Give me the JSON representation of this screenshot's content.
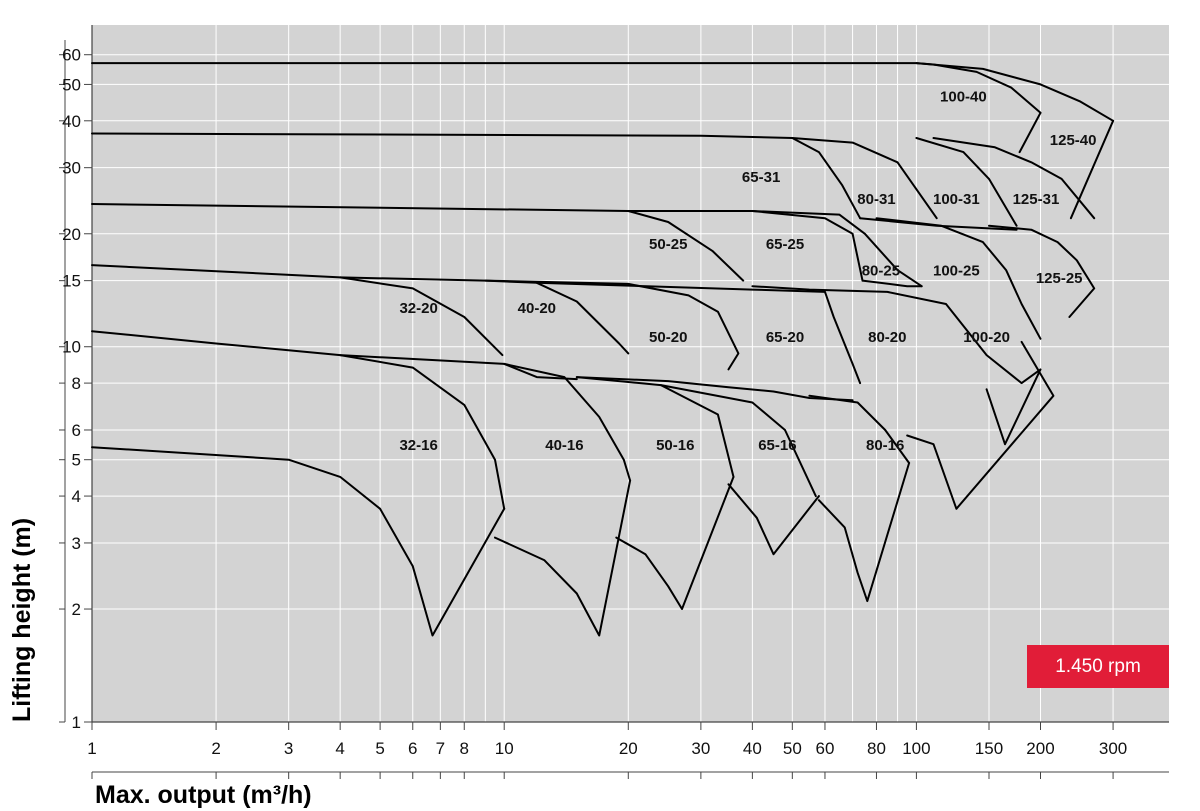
{
  "chart_data": {
    "type": "line",
    "xlabel": "Max. output (m³/h)",
    "ylabel": "Lifting height (m)",
    "x_scale": "log",
    "y_scale": "log",
    "xlim": [
      1,
      410
    ],
    "ylim": [
      1,
      72
    ],
    "x_ticks": [
      "1",
      "2",
      "3",
      "4",
      "5",
      "6",
      "7",
      "8",
      "10",
      "20",
      "30",
      "40",
      "50",
      "60",
      "80",
      "100",
      "150",
      "200",
      "300"
    ],
    "y_ticks": [
      "1",
      "2",
      "3",
      "4",
      "5",
      "6",
      "8",
      "10",
      "15",
      "20",
      "30",
      "40",
      "50",
      "60"
    ],
    "grid": true,
    "background": "#d3d3d3",
    "line_color": "#000000",
    "badge": "1.450 rpm",
    "badge_color": "#e11d38",
    "region_labels": [
      {
        "text": "100-40",
        "x": 130,
        "y": 45
      },
      {
        "text": "125-40",
        "x": 240,
        "y": 34.5
      },
      {
        "text": "65-31",
        "x": 42,
        "y": 27.5
      },
      {
        "text": "80-31",
        "x": 80,
        "y": 24
      },
      {
        "text": "100-31",
        "x": 125,
        "y": 24
      },
      {
        "text": "125-31",
        "x": 195,
        "y": 24
      },
      {
        "text": "50-25",
        "x": 25,
        "y": 18.2
      },
      {
        "text": "65-25",
        "x": 48,
        "y": 18.2
      },
      {
        "text": "80-25",
        "x": 82,
        "y": 15.5
      },
      {
        "text": "100-25",
        "x": 125,
        "y": 15.5
      },
      {
        "text": "125-25",
        "x": 222,
        "y": 14.8
      },
      {
        "text": "32-20",
        "x": 6.2,
        "y": 12.3
      },
      {
        "text": "40-20",
        "x": 12,
        "y": 12.3
      },
      {
        "text": "50-20",
        "x": 25,
        "y": 10.3
      },
      {
        "text": "65-20",
        "x": 48,
        "y": 10.3
      },
      {
        "text": "80-20",
        "x": 85,
        "y": 10.3
      },
      {
        "text": "100-20",
        "x": 148,
        "y": 10.3
      },
      {
        "text": "32-16",
        "x": 6.2,
        "y": 5.3
      },
      {
        "text": "40-16",
        "x": 14,
        "y": 5.3
      },
      {
        "text": "50-16",
        "x": 26,
        "y": 5.3
      },
      {
        "text": "65-16",
        "x": 46,
        "y": 5.3
      },
      {
        "text": "80-16",
        "x": 84,
        "y": 5.3
      }
    ],
    "series": [
      {
        "values": [
          [
            1,
            57
          ],
          [
            100,
            57
          ],
          [
            110,
            56.5
          ],
          [
            140,
            54
          ],
          [
            170,
            49
          ],
          [
            200,
            42
          ]
        ]
      },
      {
        "values": [
          [
            100,
            57
          ],
          [
            145,
            55
          ],
          [
            200,
            50
          ],
          [
            250,
            45
          ],
          [
            300,
            40
          ]
        ]
      },
      {
        "values": [
          [
            200,
            42
          ],
          [
            178,
            33
          ]
        ]
      },
      {
        "values": [
          [
            300,
            40
          ],
          [
            237,
            22
          ]
        ]
      },
      {
        "values": [
          [
            1,
            37
          ],
          [
            30,
            36.5
          ],
          [
            50,
            36
          ],
          [
            58,
            33
          ],
          [
            66,
            27
          ],
          [
            73,
            22
          ]
        ]
      },
      {
        "values": [
          [
            50,
            36
          ],
          [
            70,
            35
          ],
          [
            90,
            31
          ],
          [
            112,
            22
          ]
        ]
      },
      {
        "values": [
          [
            100,
            36
          ],
          [
            130,
            33
          ],
          [
            150,
            28
          ],
          [
            175,
            21
          ]
        ]
      },
      {
        "values": [
          [
            110,
            36
          ],
          [
            155,
            34
          ],
          [
            190,
            31
          ],
          [
            225,
            28
          ],
          [
            270,
            22
          ]
        ]
      },
      {
        "values": [
          [
            73,
            22
          ],
          [
            112,
            21
          ],
          [
            175,
            20.5
          ]
        ]
      },
      {
        "values": [
          [
            1,
            24
          ],
          [
            20,
            23
          ],
          [
            25,
            21.5
          ],
          [
            32,
            18
          ],
          [
            38,
            15
          ]
        ]
      },
      {
        "values": [
          [
            20,
            23
          ],
          [
            40,
            23
          ],
          [
            60,
            22
          ],
          [
            70,
            20
          ],
          [
            74,
            15
          ]
        ]
      },
      {
        "values": [
          [
            40,
            23
          ],
          [
            65,
            22.5
          ],
          [
            75,
            20
          ],
          [
            90,
            16
          ],
          [
            103,
            14.5
          ]
        ]
      },
      {
        "values": [
          [
            80,
            22
          ],
          [
            115,
            21
          ],
          [
            145,
            19
          ],
          [
            165,
            16
          ],
          [
            180,
            13
          ],
          [
            200,
            10.5
          ]
        ]
      },
      {
        "values": [
          [
            150,
            21
          ],
          [
            190,
            20.5
          ],
          [
            220,
            19
          ],
          [
            245,
            17
          ],
          [
            270,
            14.3
          ],
          [
            235,
            12
          ]
        ]
      },
      {
        "values": [
          [
            74,
            15
          ],
          [
            95,
            14.5
          ],
          [
            103,
            14.5
          ]
        ]
      },
      {
        "values": [
          [
            1,
            16.5
          ],
          [
            4,
            15.3
          ],
          [
            6,
            14.3
          ],
          [
            8,
            12
          ],
          [
            9.9,
            9.5
          ]
        ]
      },
      {
        "values": [
          [
            4,
            15.3
          ],
          [
            9,
            15
          ],
          [
            12,
            14.8
          ],
          [
            15,
            13.2
          ],
          [
            19,
            10.2
          ],
          [
            20,
            9.6
          ]
        ]
      },
      {
        "values": [
          [
            9,
            15
          ],
          [
            20,
            14.7
          ],
          [
            28,
            13.7
          ],
          [
            33,
            12.4
          ],
          [
            37,
            9.6
          ],
          [
            35,
            8.7
          ]
        ]
      },
      {
        "values": [
          [
            12,
            14.8
          ],
          [
            40,
            14.2
          ],
          [
            60,
            14
          ],
          [
            63,
            12
          ],
          [
            70,
            9
          ],
          [
            73,
            8
          ]
        ]
      },
      {
        "values": [
          [
            40,
            14.5
          ],
          [
            55,
            14.2
          ],
          [
            85,
            14
          ],
          [
            118,
            13
          ],
          [
            148,
            9.5
          ],
          [
            180,
            8
          ],
          [
            200,
            8.7
          ],
          [
            164,
            5.5
          ],
          [
            148,
            7.7
          ]
        ]
      },
      {
        "values": [
          [
            180,
            10.3
          ],
          [
            215,
            7.4
          ],
          [
            125,
            3.7
          ],
          [
            110,
            5.5
          ],
          [
            95,
            5.8
          ]
        ]
      },
      {
        "values": [
          [
            1,
            11
          ],
          [
            2,
            10.2
          ],
          [
            4,
            9.5
          ],
          [
            10,
            9
          ],
          [
            12,
            8.3
          ],
          [
            15,
            8.2
          ]
        ]
      },
      {
        "values": [
          [
            4,
            9.5
          ],
          [
            6,
            8.8
          ],
          [
            8,
            7
          ],
          [
            9.5,
            5
          ],
          [
            10,
            3.7
          ]
        ]
      },
      {
        "values": [
          [
            10,
            9
          ],
          [
            14,
            8.3
          ],
          [
            17,
            6.5
          ],
          [
            19.5,
            5
          ],
          [
            20.2,
            4.4
          ]
        ]
      },
      {
        "values": [
          [
            15,
            8.3
          ],
          [
            25,
            8.1
          ],
          [
            35,
            7.8
          ],
          [
            45,
            7.6
          ],
          [
            55,
            7.3
          ],
          [
            70,
            7.2
          ]
        ]
      },
      {
        "values": [
          [
            15,
            8.3
          ],
          [
            24,
            7.9
          ],
          [
            33,
            6.6
          ],
          [
            36,
            4.5
          ]
        ]
      },
      {
        "values": [
          [
            24,
            7.9
          ],
          [
            40,
            7.1
          ],
          [
            48,
            6
          ],
          [
            57,
            4
          ]
        ]
      },
      {
        "values": [
          [
            55,
            7.4
          ],
          [
            72,
            7.1
          ],
          [
            84,
            6
          ],
          [
            96,
            4.9
          ]
        ]
      },
      {
        "values": [
          [
            1,
            5.4
          ],
          [
            3,
            5
          ],
          [
            4,
            4.5
          ],
          [
            5,
            3.7
          ],
          [
            6,
            2.6
          ],
          [
            6.7,
            1.7
          ],
          [
            10,
            3.7
          ]
        ]
      },
      {
        "values": [
          [
            9.5,
            3.1
          ],
          [
            12.5,
            2.7
          ],
          [
            15,
            2.2
          ],
          [
            17,
            1.7
          ],
          [
            20.2,
            4.4
          ]
        ]
      },
      {
        "values": [
          [
            18.7,
            3.1
          ],
          [
            22,
            2.8
          ],
          [
            25,
            2.3
          ],
          [
            27,
            2
          ],
          [
            36,
            4.5
          ]
        ]
      },
      {
        "values": [
          [
            35,
            4.3
          ],
          [
            41,
            3.5
          ],
          [
            45,
            2.8
          ],
          [
            58,
            4
          ]
        ]
      },
      {
        "values": [
          [
            58,
            3.9
          ],
          [
            67,
            3.3
          ],
          [
            72,
            2.5
          ],
          [
            76,
            2.1
          ],
          [
            96,
            4.9
          ]
        ]
      }
    ]
  }
}
